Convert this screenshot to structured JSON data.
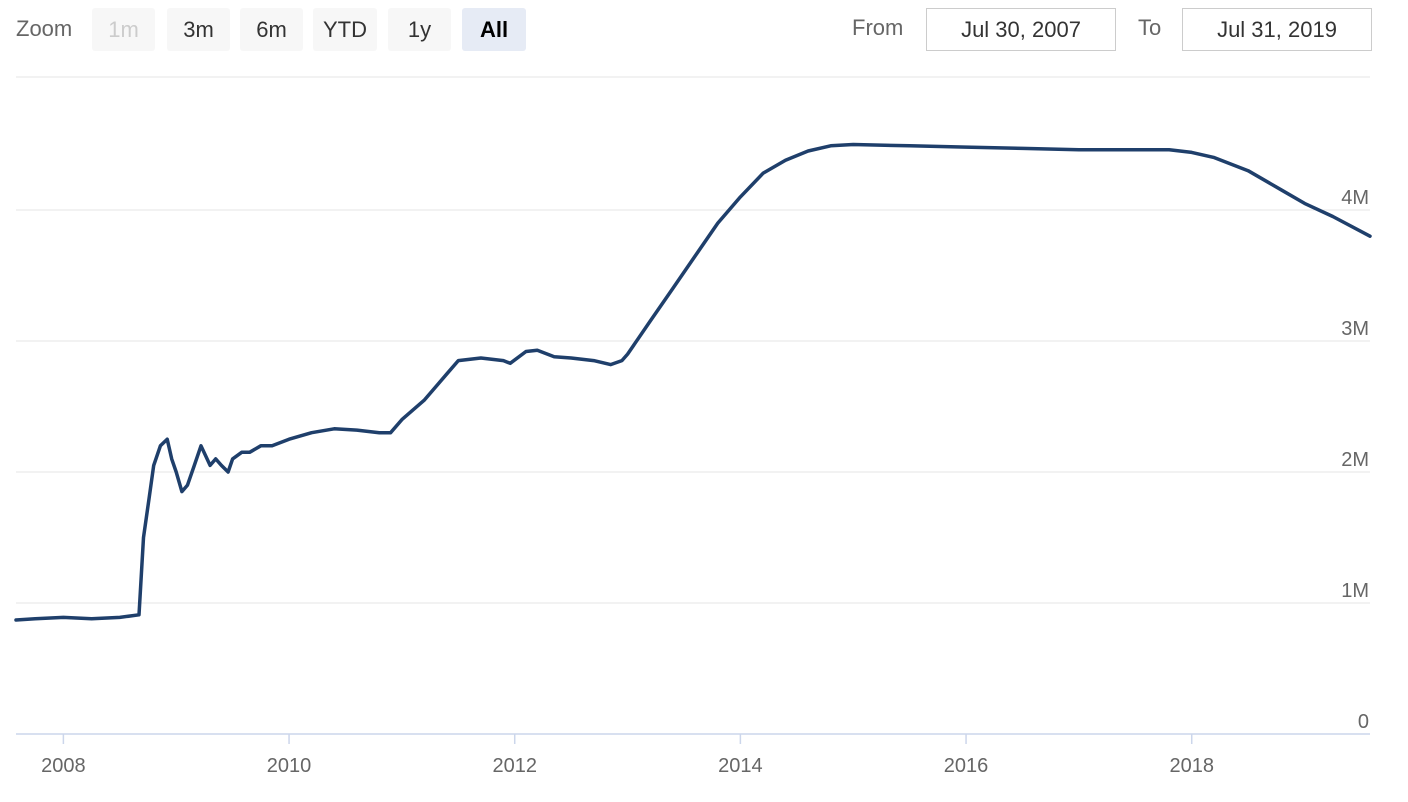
{
  "toolbar": {
    "zoom_label": "Zoom",
    "buttons": [
      {
        "label": "1m",
        "state": "disabled"
      },
      {
        "label": "3m",
        "state": "normal"
      },
      {
        "label": "6m",
        "state": "normal"
      },
      {
        "label": "YTD",
        "state": "normal"
      },
      {
        "label": "1y",
        "state": "normal"
      },
      {
        "label": "All",
        "state": "selected"
      }
    ],
    "from_label": "From",
    "from_value": "Jul 30, 2007",
    "to_label": "To",
    "to_value": "Jul 31, 2019"
  },
  "chart_data": {
    "type": "line",
    "title": "",
    "xlabel": "",
    "ylabel": "",
    "xlim": [
      2007.58,
      2019.58
    ],
    "ylim": [
      0,
      4500000
    ],
    "grid": true,
    "legend": "none",
    "line_color": "#1f3f6b",
    "x_ticks": [
      2008,
      2010,
      2012,
      2014,
      2016,
      2018
    ],
    "x_tick_labels": [
      "2008",
      "2010",
      "2012",
      "2014",
      "2016",
      "2018"
    ],
    "y_ticks": [
      0,
      1000000,
      2000000,
      3000000,
      4000000
    ],
    "y_tick_labels": [
      "0",
      "1M",
      "2M",
      "3M",
      "4M"
    ],
    "series": [
      {
        "name": "",
        "x": [
          2007.58,
          2007.75,
          2008.0,
          2008.25,
          2008.5,
          2008.67,
          2008.71,
          2008.76,
          2008.8,
          2008.86,
          2008.92,
          2008.96,
          2009.0,
          2009.05,
          2009.1,
          2009.16,
          2009.22,
          2009.3,
          2009.35,
          2009.4,
          2009.46,
          2009.5,
          2009.58,
          2009.65,
          2009.75,
          2009.85,
          2010.0,
          2010.2,
          2010.4,
          2010.6,
          2010.8,
          2010.9,
          2011.0,
          2011.2,
          2011.4,
          2011.5,
          2011.7,
          2011.9,
          2011.96,
          2012.1,
          2012.2,
          2012.35,
          2012.5,
          2012.7,
          2012.85,
          2012.95,
          2013.0,
          2013.2,
          2013.4,
          2013.6,
          2013.8,
          2014.0,
          2014.2,
          2014.4,
          2014.6,
          2014.8,
          2015.0,
          2015.5,
          2016.0,
          2016.5,
          2017.0,
          2017.5,
          2017.8,
          2018.0,
          2018.2,
          2018.5,
          2018.8,
          2019.0,
          2019.25,
          2019.58
        ],
        "y": [
          870000,
          880000,
          890000,
          880000,
          890000,
          910000,
          1500000,
          1800000,
          2050000,
          2200000,
          2250000,
          2100000,
          2000000,
          1850000,
          1900000,
          2050000,
          2200000,
          2050000,
          2100000,
          2050000,
          2000000,
          2100000,
          2150000,
          2150000,
          2200000,
          2200000,
          2250000,
          2300000,
          2330000,
          2320000,
          2300000,
          2300000,
          2400000,
          2550000,
          2750000,
          2850000,
          2870000,
          2850000,
          2830000,
          2920000,
          2930000,
          2880000,
          2870000,
          2850000,
          2820000,
          2850000,
          2900000,
          3150000,
          3400000,
          3650000,
          3900000,
          4100000,
          4280000,
          4380000,
          4450000,
          4490000,
          4500000,
          4490000,
          4480000,
          4470000,
          4460000,
          4460000,
          4460000,
          4440000,
          4400000,
          4300000,
          4150000,
          4050000,
          3950000,
          3800000
        ]
      }
    ]
  }
}
